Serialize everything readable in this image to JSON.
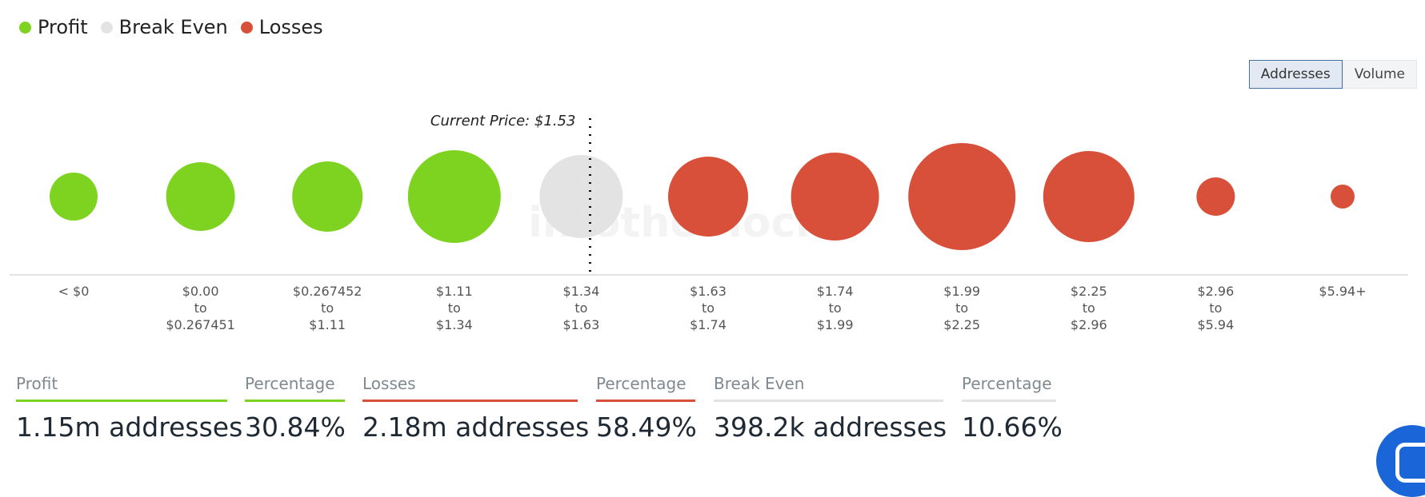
{
  "legend": [
    {
      "label": "Profit",
      "color": "#7ed321"
    },
    {
      "label": "Break Even",
      "color": "#e3e3e3"
    },
    {
      "label": "Losses",
      "color": "#d9503a"
    }
  ],
  "toggle": {
    "addresses": "Addresses",
    "volume": "Volume"
  },
  "watermark": "intotheblock",
  "chart_data": {
    "type": "bubble",
    "current_price_label": "Current Price: $1.53",
    "current_price": 1.53,
    "categories": [
      {
        "lines": [
          "< $0"
        ],
        "status": "profit",
        "size": 30
      },
      {
        "lines": [
          "$0.00",
          "to",
          "$0.267451"
        ],
        "status": "profit",
        "size": 43
      },
      {
        "lines": [
          "$0.267452",
          "to",
          "$1.11"
        ],
        "status": "profit",
        "size": 44
      },
      {
        "lines": [
          "$1.11",
          "to",
          "$1.34"
        ],
        "status": "profit",
        "size": 58
      },
      {
        "lines": [
          "$1.34",
          "to",
          "$1.63"
        ],
        "status": "break_even",
        "size": 52
      },
      {
        "lines": [
          "$1.63",
          "to",
          "$1.74"
        ],
        "status": "loss",
        "size": 50
      },
      {
        "lines": [
          "$1.74",
          "to",
          "$1.99"
        ],
        "status": "loss",
        "size": 55
      },
      {
        "lines": [
          "$1.99",
          "to",
          "$2.25"
        ],
        "status": "loss",
        "size": 67
      },
      {
        "lines": [
          "$2.25",
          "to",
          "$2.96"
        ],
        "status": "loss",
        "size": 57
      },
      {
        "lines": [
          "$2.96",
          "to",
          "$5.94"
        ],
        "status": "loss",
        "size": 24
      },
      {
        "lines": [
          "$5.94+"
        ],
        "status": "loss",
        "size": 15
      }
    ],
    "colors": {
      "profit": "#7ed321",
      "break_even": "#e3e3e3",
      "loss": "#d9503a"
    }
  },
  "summary": {
    "profit": {
      "label": "Profit",
      "value": "1.15m addresses",
      "color": "#7ed321"
    },
    "profit_pct": {
      "label": "Percentage",
      "value": "30.84%",
      "color": "#7ed321"
    },
    "losses": {
      "label": "Losses",
      "value": "2.18m addresses",
      "color": "#d9503a"
    },
    "losses_pct": {
      "label": "Percentage",
      "value": "58.49%",
      "color": "#d9503a"
    },
    "break_even": {
      "label": "Break Even",
      "value": "398.2k addresses",
      "color": "#e3e3e3"
    },
    "break_even_pct": {
      "label": "Percentage",
      "value": "10.66%",
      "color": "#e3e3e3"
    }
  }
}
